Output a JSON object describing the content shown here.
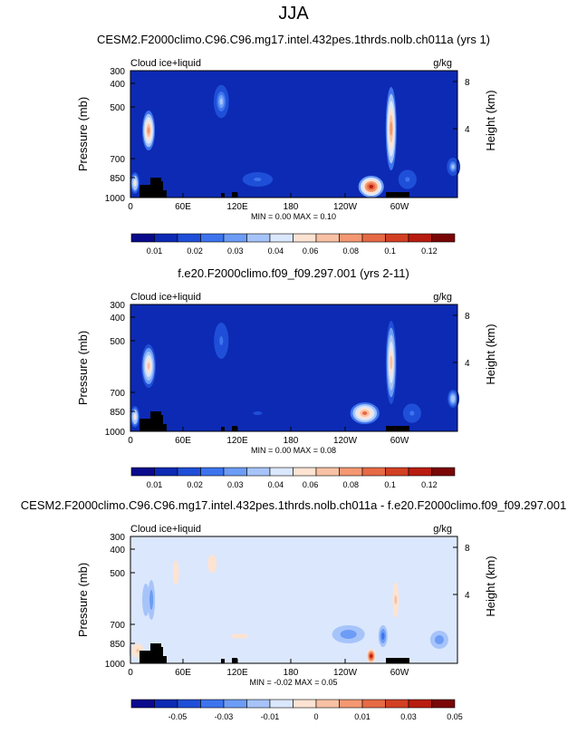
{
  "page": {
    "season": "JJA"
  },
  "chart_data": [
    {
      "type": "heatmap",
      "title": "CESM2.F2000climo.C96.C96.mg17.intel.432pes.1thrds.nolb.ch011a (yrs 1)",
      "field_label": "Cloud ice+liquid",
      "units": "g/kg",
      "ylabel": "Pressure (mb)",
      "y2label": "Height (km)",
      "pressure_ticks": [
        "300",
        "400",
        "500",
        "700",
        "850",
        "1000"
      ],
      "height_ticks": [
        "8",
        "4"
      ],
      "lon_ticks": [
        "0",
        "60E",
        "120E",
        "180",
        "120W",
        "60W"
      ],
      "stats": "MIN =   0.00  MAX =   0.10",
      "colorbar_labels": [
        "0.01",
        "0.02",
        "0.03",
        "0.04",
        "0.06",
        "0.08",
        "0.1",
        "0.12"
      ],
      "colorbar_colors": [
        "#0a0a8c",
        "#0d2ab4",
        "#1f4fd8",
        "#3d74ee",
        "#6c9cf5",
        "#a6c4fa",
        "#dbe7fd",
        "#fde3d2",
        "#f9c1a4",
        "#f39872",
        "#e66a45",
        "#d24023",
        "#b81c10",
        "#7a0606"
      ],
      "features": [
        {
          "lon": 20,
          "p": 630,
          "peak": 0.07,
          "wlon": 7,
          "wp": 110
        },
        {
          "lon": 5,
          "p": 920,
          "peak": 0.05,
          "wlon": 5,
          "wp": 60
        },
        {
          "lon": 100,
          "p": 470,
          "peak": 0.03,
          "wlon": 10,
          "wp": 110
        },
        {
          "lon": 140,
          "p": 900,
          "peak": 0.02,
          "wlon": 25,
          "wp": 60
        },
        {
          "lon": 215,
          "p": 900,
          "peak": 0.01,
          "wlon": 20,
          "wp": 50
        },
        {
          "lon": 265,
          "p": 940,
          "peak": 0.1,
          "wlon": 14,
          "wp": 60
        },
        {
          "lon": 287,
          "p": 620,
          "peak": 0.07,
          "wlon": 6,
          "wp": 230
        },
        {
          "lon": 305,
          "p": 900,
          "peak": 0.02,
          "wlon": 15,
          "wp": 80
        },
        {
          "lon": 355,
          "p": 830,
          "peak": 0.03,
          "wlon": 8,
          "wp": 60
        }
      ]
    },
    {
      "type": "heatmap",
      "title": "f.e20.F2000climo.f09_f09.297.001 (yrs 2-11)",
      "field_label": "Cloud ice+liquid",
      "units": "g/kg",
      "ylabel": "Pressure (mb)",
      "y2label": "Height (km)",
      "pressure_ticks": [
        "300",
        "400",
        "500",
        "700",
        "850",
        "1000"
      ],
      "height_ticks": [
        "8",
        "4"
      ],
      "lon_ticks": [
        "0",
        "60E",
        "120E",
        "180",
        "120W",
        "60W"
      ],
      "stats": "MIN =   0.00  MAX =   0.08",
      "colorbar_labels": [
        "0.01",
        "0.02",
        "0.03",
        "0.04",
        "0.06",
        "0.08",
        "0.1",
        "0.12"
      ],
      "colorbar_colors": [
        "#0a0a8c",
        "#0d2ab4",
        "#1f4fd8",
        "#3d74ee",
        "#6c9cf5",
        "#a6c4fa",
        "#dbe7fd",
        "#fde3d2",
        "#f9c1a4",
        "#f39872",
        "#e66a45",
        "#d24023",
        "#b81c10",
        "#7a0606"
      ],
      "features": [
        {
          "lon": 20,
          "p": 640,
          "peak": 0.06,
          "wlon": 8,
          "wp": 120
        },
        {
          "lon": 5,
          "p": 920,
          "peak": 0.05,
          "wlon": 5,
          "wp": 60
        },
        {
          "lon": 100,
          "p": 500,
          "peak": 0.02,
          "wlon": 12,
          "wp": 150
        },
        {
          "lon": 150,
          "p": 480,
          "peak": 0.01,
          "wlon": 10,
          "wp": 60
        },
        {
          "lon": 140,
          "p": 900,
          "peak": 0.015,
          "wlon": 30,
          "wp": 60
        },
        {
          "lon": 258,
          "p": 900,
          "peak": 0.08,
          "wlon": 16,
          "wp": 60
        },
        {
          "lon": 287,
          "p": 620,
          "peak": 0.06,
          "wlon": 6,
          "wp": 230
        },
        {
          "lon": 310,
          "p": 900,
          "peak": 0.02,
          "wlon": 15,
          "wp": 80
        },
        {
          "lon": 355,
          "p": 820,
          "peak": 0.035,
          "wlon": 7,
          "wp": 60
        }
      ]
    },
    {
      "type": "heatmap",
      "title": "CESM2.F2000climo.C96.C96.mg17.intel.432pes.1thrds.nolb.ch011a - f.e20.F2000climo.f09_f09.297.001",
      "field_label": "Cloud ice+liquid",
      "units": "g/kg",
      "ylabel": "Pressure (mb)",
      "y2label": "Height (km)",
      "pressure_ticks": [
        "300",
        "400",
        "500",
        "700",
        "850",
        "1000"
      ],
      "height_ticks": [
        "8",
        "4"
      ],
      "lon_ticks": [
        "0",
        "60E",
        "120E",
        "180",
        "120W",
        "60W"
      ],
      "stats": "MIN =  -0.02  MAX =   0.05",
      "colorbar_labels": [
        "-0.05",
        "-0.03",
        "-0.01",
        "0",
        "0.01",
        "0.03",
        "0.05"
      ],
      "colorbar_colors": [
        "#0a0a8c",
        "#0d2ab4",
        "#1f4fd8",
        "#3d74ee",
        "#6c9cf5",
        "#a6c4fa",
        "#dbe7fd",
        "#fde3d2",
        "#f9c1a4",
        "#f39872",
        "#e66a45",
        "#d24023",
        "#b81c10",
        "#7a0606"
      ],
      "features": [
        {
          "lon": 8,
          "p": 930,
          "peak": 0.01,
          "wlon": 10,
          "wp": 60
        },
        {
          "lon": 17,
          "p": 650,
          "peak": -0.004,
          "wlon": 4,
          "wp": 90
        },
        {
          "lon": 23,
          "p": 650,
          "peak": -0.01,
          "wlon": 4,
          "wp": 110
        },
        {
          "lon": 50,
          "p": 500,
          "peak": 0.006,
          "wlon": 10,
          "wp": 200
        },
        {
          "lon": 90,
          "p": 450,
          "peak": 0.006,
          "wlon": 15,
          "wp": 150
        },
        {
          "lon": 120,
          "p": 850,
          "peak": 0.005,
          "wlon": 60,
          "wp": 80
        },
        {
          "lon": 240,
          "p": 840,
          "peak": -0.01,
          "wlon": 18,
          "wp": 50
        },
        {
          "lon": 265,
          "p": 960,
          "peak": 0.05,
          "wlon": 5,
          "wp": 40
        },
        {
          "lon": 278,
          "p": 850,
          "peak": -0.015,
          "wlon": 5,
          "wp": 60
        },
        {
          "lon": 292,
          "p": 650,
          "peak": 0.01,
          "wlon": 5,
          "wp": 150
        },
        {
          "lon": 340,
          "p": 870,
          "peak": -0.008,
          "wlon": 10,
          "wp": 50
        }
      ]
    }
  ]
}
